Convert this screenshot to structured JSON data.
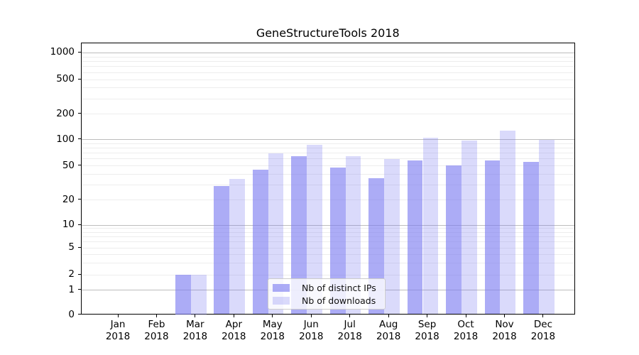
{
  "title": "GeneStructureTools 2018",
  "chart_data": {
    "type": "bar",
    "title": "GeneStructureTools 2018",
    "x": {
      "months": [
        "Jan",
        "Feb",
        "Mar",
        "Apr",
        "May",
        "Jun",
        "Jul",
        "Aug",
        "Sep",
        "Oct",
        "Nov",
        "Dec"
      ],
      "year": "2018"
    },
    "series": [
      {
        "name": "Nb of distinct IPs",
        "values": [
          0,
          0,
          2,
          29,
          45,
          65,
          48,
          36,
          58,
          51,
          58,
          56
        ],
        "color": "rgba(123,123,240,0.63)"
      },
      {
        "name": "Nb of downloads",
        "values": [
          0,
          0,
          2,
          35,
          70,
          87,
          65,
          60,
          105,
          97,
          128,
          100
        ],
        "color": "rgba(123,123,240,0.28)"
      }
    ],
    "y_axis": {
      "scale": "symlog",
      "ticks": [
        0,
        1,
        2,
        5,
        10,
        20,
        50,
        100,
        200,
        500,
        1000
      ],
      "range_top": 1300
    },
    "grid": {
      "major": true,
      "minor": true
    },
    "legend": {
      "position": "lower center"
    }
  },
  "colors": {
    "bar_distinct_ips": "rgba(123,123,240,0.63)",
    "bar_downloads": "rgba(123,123,240,0.28)",
    "grid_major": "#bdbdbd",
    "grid_minor": "#ededed",
    "axis": "#000000",
    "legend_border": "#cccccc",
    "background": "#ffffff",
    "text": "#111111"
  }
}
